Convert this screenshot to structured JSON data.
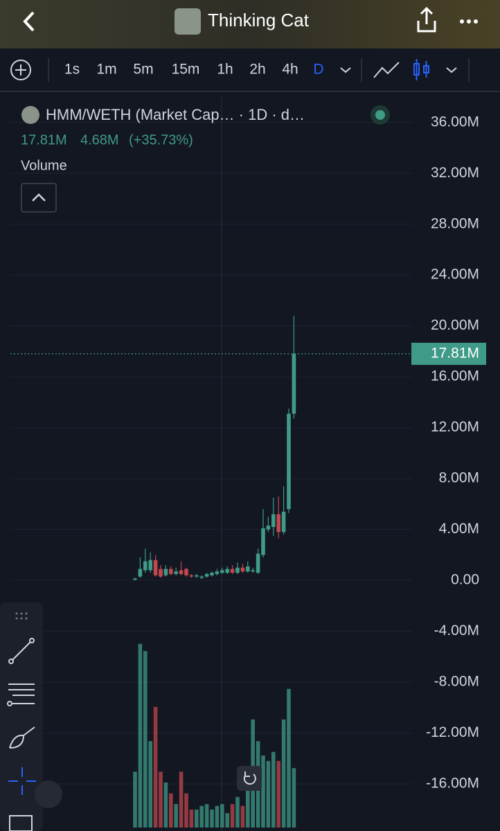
{
  "header": {
    "title": "Thinking Cat"
  },
  "toolbar": {
    "intervals": [
      "1s",
      "1m",
      "5m",
      "15m",
      "1h",
      "2h",
      "4h",
      "D"
    ]
  },
  "legend": {
    "symbol": "HMM/WETH (Market Cap… · 1D · d…",
    "values": [
      "17.81M",
      "4.68M",
      "(+35.73%)"
    ],
    "study": "Volume"
  },
  "chart_data": {
    "type": "candlestick",
    "up_color": "#3f9b87",
    "down_color": "#c2474f",
    "candles": [
      {
        "o": 0.05,
        "h": 0.2,
        "l": 0.0,
        "c": 0.15
      },
      {
        "o": 0.3,
        "h": 1.8,
        "l": 0.2,
        "c": 0.9
      },
      {
        "o": 0.8,
        "h": 2.5,
        "l": 0.6,
        "c": 1.5
      },
      {
        "o": 0.8,
        "h": 2.2,
        "l": 0.6,
        "c": 1.6
      },
      {
        "o": 1.6,
        "h": 2.0,
        "l": 0.3,
        "c": 0.4
      },
      {
        "o": 0.9,
        "h": 1.2,
        "l": 0.2,
        "c": 0.3
      },
      {
        "o": 0.4,
        "h": 1.2,
        "l": 0.3,
        "c": 0.9
      },
      {
        "o": 0.9,
        "h": 1.1,
        "l": 0.4,
        "c": 0.5
      },
      {
        "o": 0.5,
        "h": 1.0,
        "l": 0.4,
        "c": 0.7
      },
      {
        "o": 0.8,
        "h": 1.5,
        "l": 0.4,
        "c": 0.5
      },
      {
        "o": 0.9,
        "h": 1.0,
        "l": 0.3,
        "c": 0.4
      },
      {
        "o": 0.4,
        "h": 0.5,
        "l": 0.2,
        "c": 0.3
      },
      {
        "o": 0.3,
        "h": 0.5,
        "l": 0.2,
        "c": 0.4
      },
      {
        "o": 0.2,
        "h": 0.4,
        "l": 0.1,
        "c": 0.3
      },
      {
        "o": 0.3,
        "h": 0.6,
        "l": 0.2,
        "c": 0.5
      },
      {
        "o": 0.4,
        "h": 0.7,
        "l": 0.3,
        "c": 0.6
      },
      {
        "o": 0.5,
        "h": 0.9,
        "l": 0.4,
        "c": 0.7
      },
      {
        "o": 0.6,
        "h": 1.0,
        "l": 0.5,
        "c": 0.8
      },
      {
        "o": 0.6,
        "h": 1.1,
        "l": 0.5,
        "c": 0.9
      },
      {
        "o": 0.9,
        "h": 1.2,
        "l": 0.5,
        "c": 0.6
      },
      {
        "o": 0.6,
        "h": 1.4,
        "l": 0.5,
        "c": 1.0
      },
      {
        "o": 1.0,
        "h": 1.3,
        "l": 0.6,
        "c": 0.7
      },
      {
        "o": 0.7,
        "h": 1.5,
        "l": 0.6,
        "c": 1.1
      },
      {
        "o": 0.7,
        "h": 1.0,
        "l": 0.6,
        "c": 0.8
      },
      {
        "o": 0.6,
        "h": 2.5,
        "l": 0.5,
        "c": 2.1
      },
      {
        "o": 2.0,
        "h": 5.6,
        "l": 1.8,
        "c": 4.1
      },
      {
        "o": 4.0,
        "h": 5.0,
        "l": 3.8,
        "c": 4.3
      },
      {
        "o": 4.2,
        "h": 6.5,
        "l": 3.5,
        "c": 5.2
      },
      {
        "o": 5.2,
        "h": 6.6,
        "l": 3.3,
        "c": 3.8
      },
      {
        "o": 3.8,
        "h": 7.4,
        "l": 3.6,
        "c": 5.4
      },
      {
        "o": 5.6,
        "h": 13.5,
        "l": 5.3,
        "c": 13.1
      },
      {
        "o": 13.1,
        "h": 20.8,
        "l": 12.7,
        "c": 17.81
      }
    ],
    "volume": [
      31,
      102,
      98,
      48,
      67,
      31,
      25,
      19,
      13,
      31,
      19,
      10,
      10,
      12,
      13,
      10,
      12,
      13,
      8,
      13,
      17,
      12,
      23,
      60,
      48,
      40,
      37,
      42,
      37,
      60,
      77,
      33
    ],
    "last_price": {
      "value": 17.81,
      "label": "17.81M"
    },
    "ylim": [
      -19.7,
      38
    ],
    "yticks": [
      {
        "value": 36,
        "label": "36.00M"
      },
      {
        "value": 32,
        "label": "32.00M"
      },
      {
        "value": 28,
        "label": "28.00M"
      },
      {
        "value": 24,
        "label": "24.00M"
      },
      {
        "value": 20,
        "label": "20.00M"
      },
      {
        "value": 16,
        "label": "16.00M"
      },
      {
        "value": 12,
        "label": "12.00M"
      },
      {
        "value": 8,
        "label": "8.00M"
      },
      {
        "value": 4,
        "label": "4.00M"
      },
      {
        "value": 0,
        "label": "0.00"
      },
      {
        "value": -4,
        "label": "-4.00M"
      },
      {
        "value": -8,
        "label": "-8.00M"
      },
      {
        "value": -12,
        "label": "-12.00M"
      },
      {
        "value": -16,
        "label": "-16.00M"
      }
    ],
    "grid": true
  }
}
